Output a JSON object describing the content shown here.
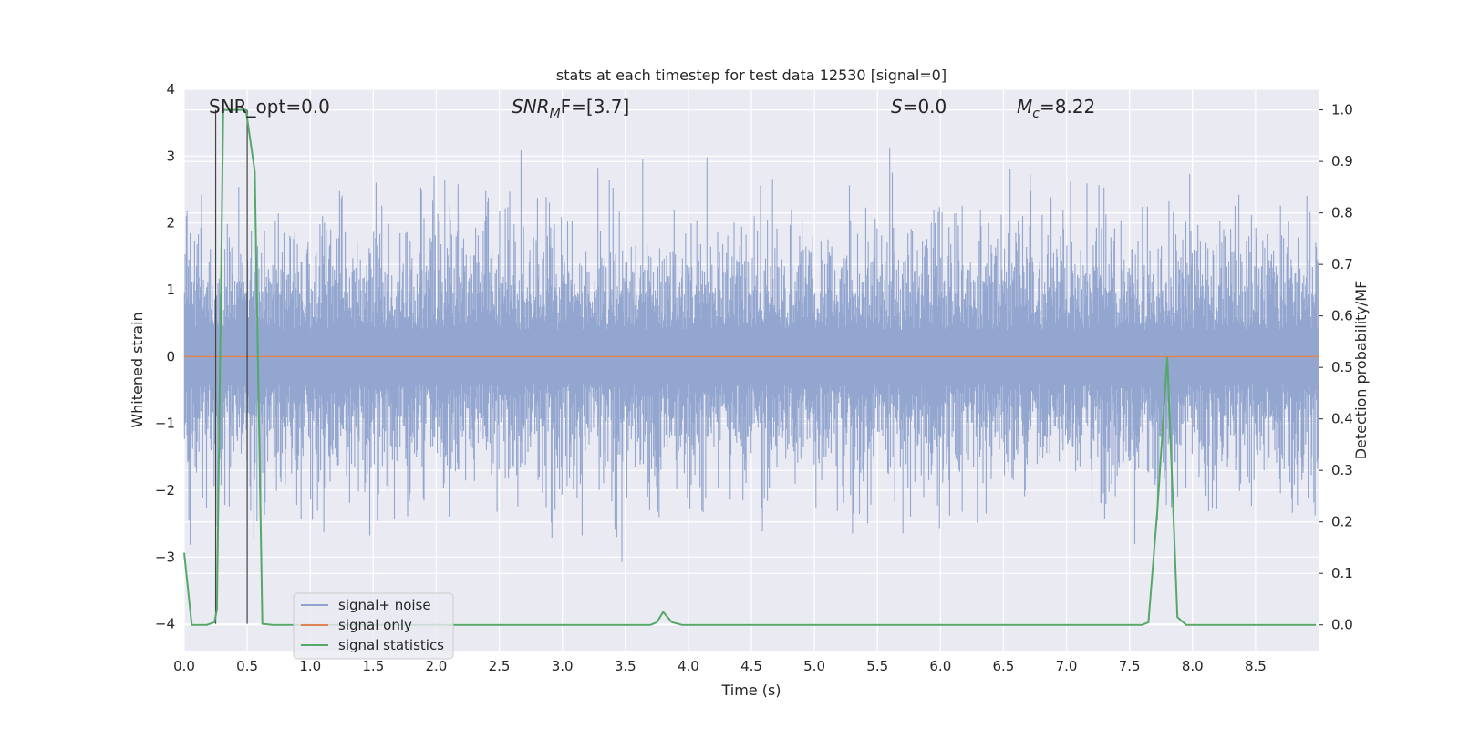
{
  "chart_data": {
    "type": "line",
    "title": "stats at each timestep for test data 12530 [signal=0]",
    "xlabel": "Time (s)",
    "ylabel": "Whitened strain",
    "ylabel_right": "Detection probability/MF",
    "xlim": [
      0.0,
      9.0
    ],
    "ylim": [
      -4.4,
      4.0
    ],
    "ylim_right": [
      -0.05,
      1.04
    ],
    "x_ticks": [
      "0.0",
      "0.5",
      "1.0",
      "1.5",
      "2.0",
      "2.5",
      "3.0",
      "3.5",
      "4.0",
      "4.5",
      "5.0",
      "5.5",
      "6.0",
      "6.5",
      "7.0",
      "7.5",
      "8.0",
      "8.5"
    ],
    "y_ticks": [
      "4",
      "3",
      "2",
      "1",
      "0",
      "−1",
      "−2",
      "−3",
      "−4"
    ],
    "y_ticks_right": [
      "1.0",
      "0.9",
      "0.8",
      "0.7",
      "0.6",
      "0.5",
      "0.4",
      "0.3",
      "0.2",
      "0.1",
      "0.0"
    ],
    "grid": true,
    "legend_position": "lower-left",
    "annotations": {
      "snr_opt": "SNR_opt=0.0",
      "snr_mf_base": "SNR",
      "snr_mf_sub": "M",
      "snr_mf_rest": "F=[3.7]",
      "s_italic": "S",
      "s_rest": "=0.0",
      "mc_base": "M",
      "mc_sub": "c",
      "mc_rest": "=8.22"
    },
    "vertical_markers_x": [
      0.25,
      0.5
    ],
    "series": [
      {
        "name": "signal+ noise",
        "color": "#8ea2cc",
        "kind": "noise",
        "x_range": [
          0.0,
          9.0
        ],
        "y_range": [
          -4.0,
          3.65
        ]
      },
      {
        "name": "signal only",
        "color": "#dd8452",
        "kind": "constant",
        "x": [
          0.0,
          9.0
        ],
        "y": [
          0.0,
          0.0
        ]
      },
      {
        "name": "signal statistics",
        "color": "#55a868",
        "axis": "right",
        "x": [
          0.0,
          0.06,
          0.18,
          0.24,
          0.26,
          0.31,
          0.49,
          0.56,
          0.62,
          0.7,
          3.7,
          3.75,
          3.8,
          3.87,
          3.95,
          7.6,
          7.65,
          7.72,
          7.8,
          7.88,
          7.95,
          8.98
        ],
        "y": [
          0.14,
          0.0,
          0.0,
          0.005,
          0.03,
          1.0,
          1.0,
          0.88,
          0.002,
          0.0,
          0.0,
          0.005,
          0.025,
          0.005,
          0.0,
          0.0,
          0.005,
          0.22,
          0.52,
          0.015,
          0.0,
          0.0
        ]
      }
    ]
  }
}
